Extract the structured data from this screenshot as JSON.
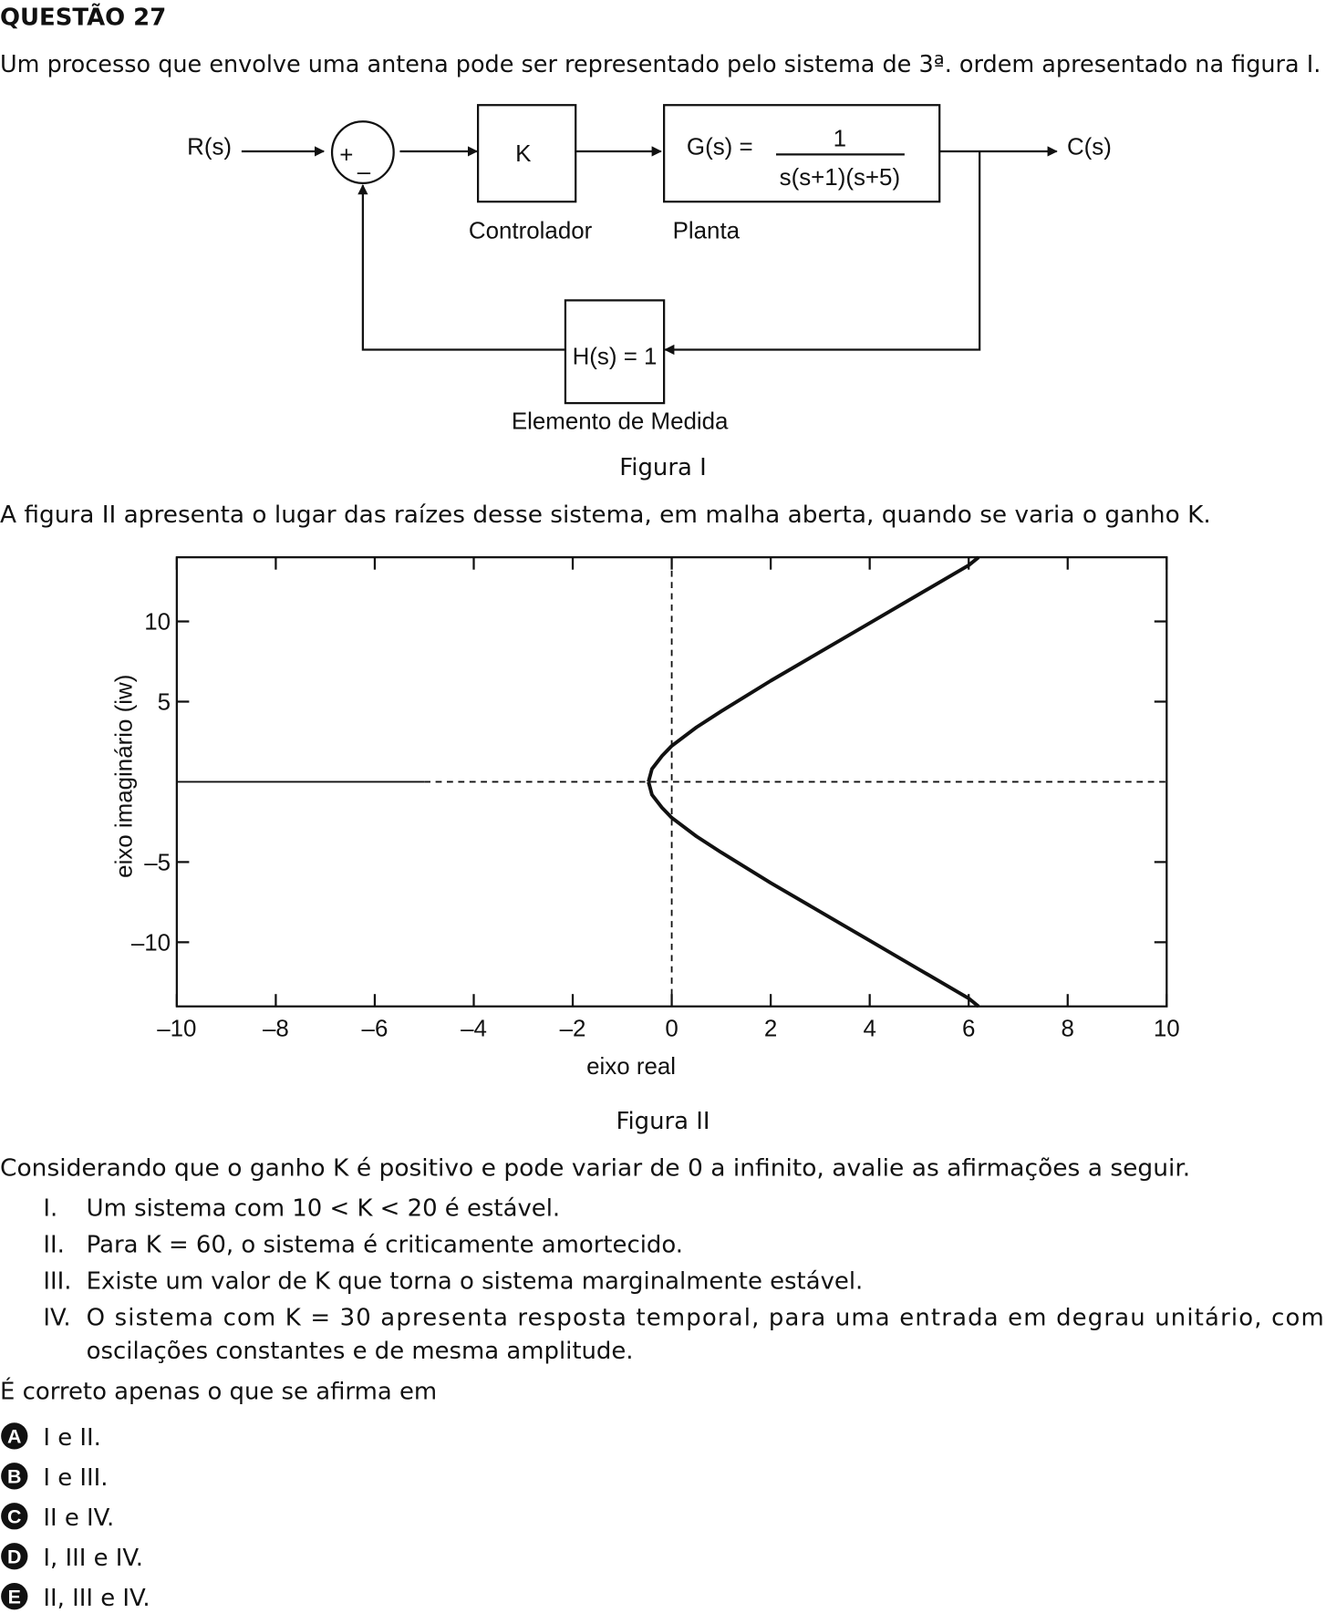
{
  "header": {
    "title": "QUESTÃO 27"
  },
  "intro": "Um processo que envolve uma antena pode ser representado pelo sistema de 3ª. ordem apresentado na figura I.",
  "figure1": {
    "input": "R(s)",
    "plus": "+",
    "minus": "–",
    "controller": "K",
    "plant_lhs": "G(s) =",
    "plant_num": "1",
    "plant_den": "s(s+1)(s+5)",
    "output": "C(s)",
    "controller_label": "Controlador",
    "plant_label": "Planta",
    "feedback": "H(s) = 1",
    "feedback_label": "Elemento de Medida",
    "caption": "Figura I"
  },
  "paragraph2": "A figura II apresenta o lugar das raízes desse sistema, em malha aberta, quando se varia o ganho K.",
  "chart_data": {
    "type": "line",
    "xlabel": "eixo real",
    "ylabel": "eixo imaginário (iw)",
    "xlim": [
      -10,
      10
    ],
    "ylim": [
      -14,
      14
    ],
    "xticks": [
      {
        "value": -10,
        "label": "–10"
      },
      {
        "value": -8,
        "label": "–8"
      },
      {
        "value": -6,
        "label": "–6"
      },
      {
        "value": -4,
        "label": "–4"
      },
      {
        "value": -2,
        "label": "–2"
      },
      0,
      2,
      4,
      6,
      8,
      10
    ],
    "yticks": [
      {
        "value": -10,
        "label": "–10"
      },
      {
        "value": -5,
        "label": "–5"
      },
      5,
      10
    ],
    "series": [
      {
        "color": "#111111",
        "style": "solid",
        "width": 1.6,
        "x": [
          -10,
          -5
        ],
        "y": [
          0,
          0
        ]
      },
      {
        "color": "#111111",
        "style": "dashed",
        "width": 1.6,
        "x": [
          -5,
          10
        ],
        "y": [
          0,
          0
        ]
      },
      {
        "color": "#111111",
        "style": "dashed",
        "width": 1.6,
        "x": [
          0,
          0
        ],
        "y": [
          -14,
          14
        ]
      },
      {
        "color": "#111111",
        "style": "solid",
        "width": 3.5,
        "x": [
          -0.47,
          -0.4,
          -0.2,
          0,
          0.5,
          1,
          2,
          3,
          4,
          5,
          6,
          6.2
        ],
        "y": [
          0,
          0.8,
          1.6,
          2.24,
          3.4,
          4.4,
          6.3,
          8.1,
          9.9,
          11.7,
          13.5,
          14
        ]
      },
      {
        "color": "#111111",
        "style": "solid",
        "width": 3.5,
        "x": [
          -0.47,
          -0.4,
          -0.2,
          0,
          0.5,
          1,
          2,
          3,
          4,
          5,
          6,
          6.2
        ],
        "y": [
          0,
          -0.8,
          -1.6,
          -2.24,
          -3.4,
          -4.4,
          -6.3,
          -8.1,
          -9.9,
          -11.7,
          -13.5,
          -14
        ]
      }
    ],
    "caption": "Figura II"
  },
  "consider": "Considerando que o ganho K é positivo e pode variar de 0 a infinito, avalie as afirmações a seguir.",
  "statements": [
    {
      "numeral": "I.",
      "lines": [
        "Um sistema com 10 < K < 20 é estável."
      ]
    },
    {
      "numeral": "II.",
      "lines": [
        "Para K = 60, o sistema é criticamente amortecido."
      ]
    },
    {
      "numeral": "III.",
      "lines": [
        "Existe um valor de K que torna o sistema marginalmente estável."
      ]
    },
    {
      "numeral": "IV.",
      "lines": [
        "O sistema com K = 30 apresenta resposta temporal, para uma entrada em degrau unitário, com",
        "oscilações constantes e de mesma amplitude."
      ]
    }
  ],
  "prompt": "É correto apenas o que se afirma em",
  "options": [
    {
      "letter": "A",
      "text": "I e II."
    },
    {
      "letter": "B",
      "text": "I e III."
    },
    {
      "letter": "C",
      "text": "II e IV."
    },
    {
      "letter": "D",
      "text": "I, III e IV."
    },
    {
      "letter": "E",
      "text": "II, III e IV."
    }
  ]
}
